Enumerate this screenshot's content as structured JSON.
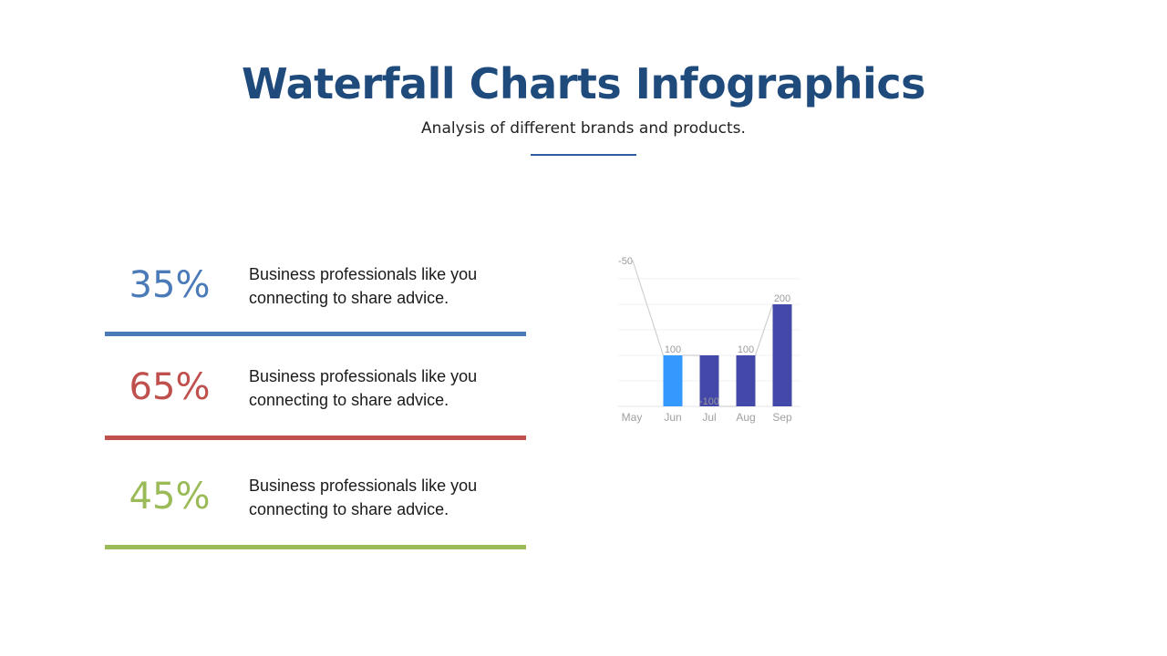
{
  "header": {
    "title": "Waterfall Charts Infographics",
    "subtitle": "Analysis of different brands and products.",
    "rule_color": "#2e5e9e"
  },
  "stats": [
    {
      "percent": "35%",
      "text": "Business professionals like you connecting to share advice.",
      "color": "#4a7ab8"
    },
    {
      "percent": "65%",
      "text": "Business professionals like you connecting to share advice.",
      "color": "#c0504d"
    },
    {
      "percent": "45%",
      "text": "Business professionals like you connecting to share advice.",
      "color": "#9bbb59"
    }
  ],
  "chart_data": {
    "type": "bar",
    "subtype": "waterfall",
    "categories": [
      "May",
      "Jun",
      "Jul",
      "Aug",
      "Sep"
    ],
    "values": [
      -50,
      100,
      -100,
      100,
      200
    ],
    "data_labels": [
      "-50",
      "100",
      "-100",
      "100",
      "200"
    ],
    "bar_colors": [
      "#ffffff",
      "#3399ff",
      "#4448a8",
      "#4448a8",
      "#4448a8"
    ],
    "connector_color": "#d0d0d0",
    "grid": true,
    "legend": "none",
    "title": "",
    "xlabel": "",
    "ylabel": ""
  }
}
